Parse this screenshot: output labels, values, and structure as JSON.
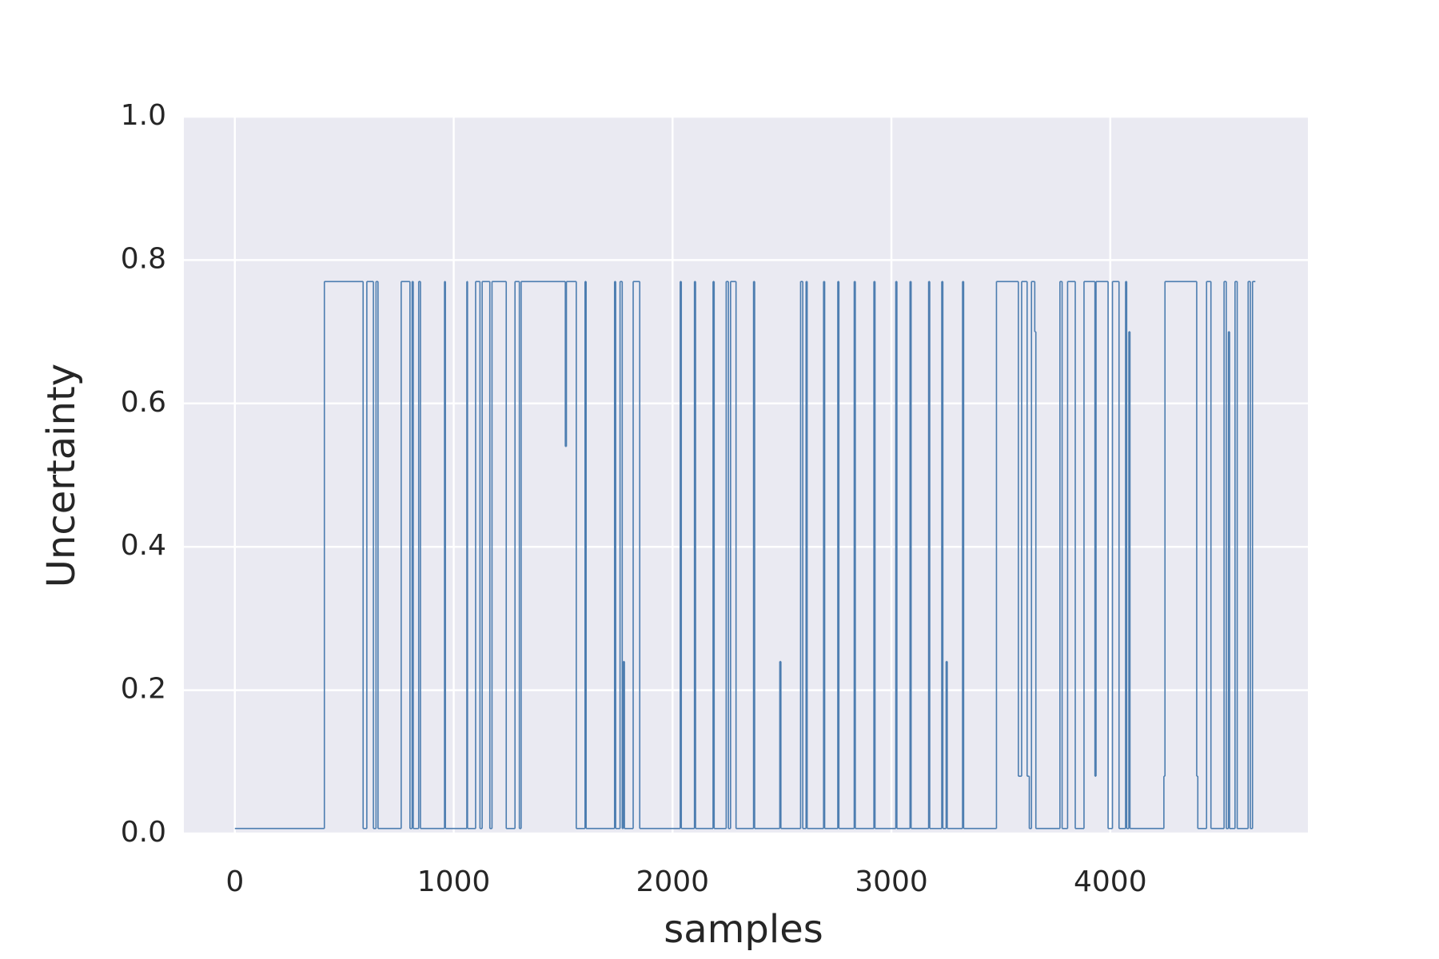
{
  "chart_data": {
    "type": "line",
    "drawstyle": "steps-post",
    "xlabel": "samples",
    "ylabel": "Uncertainty",
    "x": [
      0,
      409,
      586,
      603,
      633,
      645,
      654,
      760,
      800,
      810,
      815,
      840,
      848,
      958,
      962,
      1060,
      1063,
      1100,
      1120,
      1130,
      1165,
      1175,
      1240,
      1280,
      1300,
      1308,
      1510,
      1515,
      1560,
      1600,
      1605,
      1735,
      1740,
      1760,
      1770,
      1775,
      1780,
      1820,
      1850,
      2035,
      2040,
      2100,
      2105,
      2185,
      2190,
      2245,
      2255,
      2265,
      2290,
      2370,
      2375,
      2490,
      2495,
      2585,
      2595,
      2610,
      2615,
      2690,
      2695,
      2755,
      2760,
      2830,
      2835,
      2920,
      2925,
      3020,
      3025,
      3085,
      3090,
      3170,
      3175,
      3230,
      3235,
      3250,
      3255,
      3325,
      3330,
      3480,
      3580,
      3595,
      3620,
      3630,
      3640,
      3655,
      3660,
      3770,
      3780,
      3805,
      3840,
      3880,
      3930,
      3935,
      3990,
      4010,
      4040,
      4070,
      4075,
      4085,
      4090,
      4245,
      4250,
      4395,
      4400,
      4440,
      4460,
      4520,
      4530,
      4540,
      4545,
      4570,
      4580,
      4630,
      4640,
      4650,
      4663
    ],
    "series": [
      {
        "color": "#4c7db0",
        "values": [
          0.007,
          0.77,
          0.007,
          0.77,
          0.007,
          0.77,
          0.007,
          0.77,
          0.007,
          0.77,
          0.007,
          0.77,
          0.007,
          0.77,
          0.007,
          0.77,
          0.007,
          0.77,
          0.007,
          0.77,
          0.007,
          0.77,
          0.007,
          0.77,
          0.007,
          0.77,
          0.54,
          0.77,
          0.007,
          0.77,
          0.007,
          0.77,
          0.007,
          0.77,
          0.007,
          0.24,
          0.007,
          0.77,
          0.007,
          0.77,
          0.007,
          0.77,
          0.007,
          0.77,
          0.007,
          0.77,
          0.007,
          0.77,
          0.007,
          0.77,
          0.007,
          0.24,
          0.007,
          0.77,
          0.007,
          0.77,
          0.007,
          0.77,
          0.007,
          0.77,
          0.007,
          0.77,
          0.007,
          0.77,
          0.007,
          0.77,
          0.007,
          0.77,
          0.007,
          0.77,
          0.007,
          0.77,
          0.007,
          0.24,
          0.007,
          0.77,
          0.007,
          0.77,
          0.08,
          0.77,
          0.08,
          0.007,
          0.77,
          0.7,
          0.007,
          0.77,
          0.007,
          0.77,
          0.007,
          0.77,
          0.08,
          0.77,
          0.007,
          0.77,
          0.007,
          0.77,
          0.007,
          0.7,
          0.007,
          0.08,
          0.77,
          0.08,
          0.007,
          0.77,
          0.007,
          0.77,
          0.007,
          0.7,
          0.007,
          0.77,
          0.007,
          0.77,
          0.007,
          0.77,
          0.77
        ]
      }
    ],
    "xlim": [
      -233,
      4903
    ],
    "ylim": [
      0,
      1
    ],
    "xticks": [
      0,
      1000,
      2000,
      3000,
      4000
    ],
    "yticks": [
      {
        "value": 0,
        "label": "0.0"
      },
      0.2,
      0.4,
      0.6,
      0.8,
      {
        "value": 1,
        "label": "1.0"
      }
    ],
    "grid": true
  }
}
